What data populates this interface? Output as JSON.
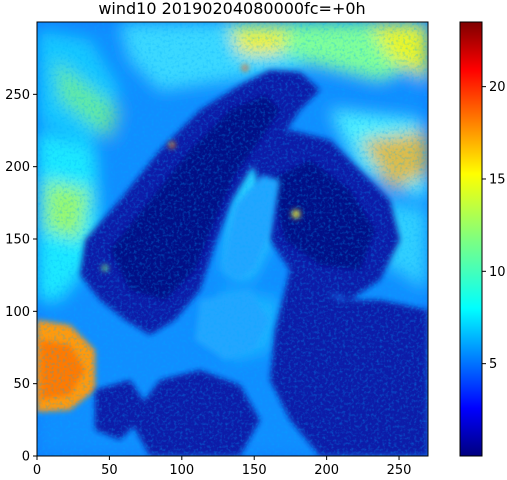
{
  "chart_data": {
    "type": "heatmap",
    "title": "wind10 20190204080000fc=+0h",
    "xlabel": "",
    "ylabel": "",
    "xlim": [
      0,
      270
    ],
    "ylim": [
      0,
      300
    ],
    "x_ticks": [
      0,
      50,
      100,
      150,
      200,
      250
    ],
    "y_ticks": [
      0,
      50,
      100,
      150,
      200,
      250
    ],
    "colorbar": {
      "colormap": "jet",
      "range": [
        0,
        23.5
      ],
      "ticks": [
        5,
        10,
        15,
        20
      ]
    },
    "grid": false,
    "colors": {
      "c0": "#00007f",
      "c1": "#0000ff",
      "c2": "#007fff",
      "c3": "#00ffff",
      "c4": "#7fff7f",
      "c5": "#ffff00",
      "c6": "#ff7f00",
      "c7": "#ff0000",
      "c8": "#7f0000"
    }
  }
}
